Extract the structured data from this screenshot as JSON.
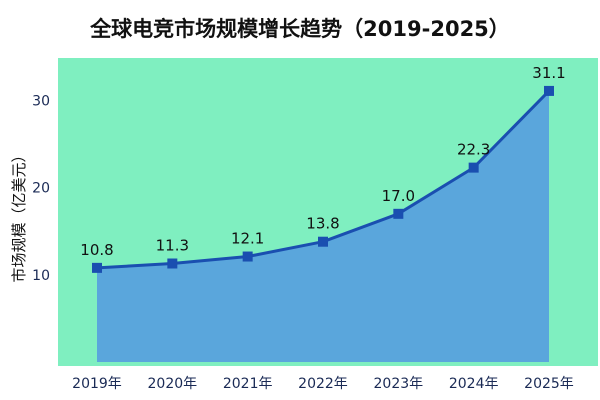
{
  "chart_data": {
    "type": "area",
    "title": "全球电竞市场规模增长趋势（2019-2025）",
    "ylabel": "市场规模（亿美元）",
    "xlabel": "",
    "categories": [
      "2019年",
      "2020年",
      "2021年",
      "2022年",
      "2023年",
      "2024年",
      "2025年"
    ],
    "values": [
      10.8,
      11.3,
      12.1,
      13.8,
      17.0,
      22.3,
      31.1
    ],
    "data_labels": [
      "10.8",
      "11.3",
      "12.1",
      "13.8",
      "17.0",
      "22.3",
      "31.1"
    ],
    "ylim": [
      0,
      33.5
    ],
    "yticks": [
      10,
      20,
      30
    ],
    "ytick_labels": [
      "10",
      "20",
      "30"
    ],
    "grid": false,
    "legend": "none"
  },
  "colors": {
    "plot_background": "#7fefc0",
    "area_fill": "#5aa6dc",
    "line": "#1a4fb0",
    "marker": "#1a4fb0",
    "tick_text": "#1a2a55",
    "title_text": "#111111"
  }
}
